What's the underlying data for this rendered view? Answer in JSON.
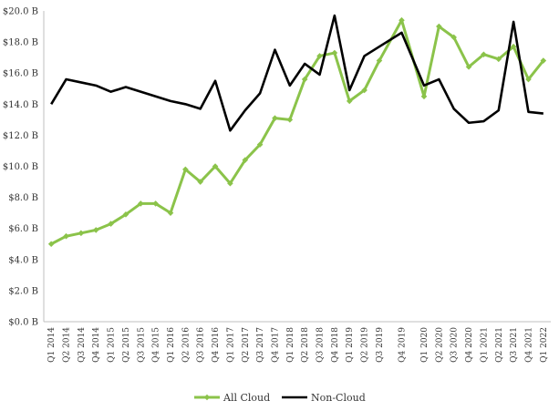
{
  "chart_data": {
    "type": "line",
    "title": "",
    "xlabel": "",
    "ylabel": "",
    "ylim": [
      0,
      20
    ],
    "y_ticks": [
      {
        "value": 0,
        "label": "$0.0 B"
      },
      {
        "value": 2,
        "label": "$2.0 B"
      },
      {
        "value": 4,
        "label": "$4.0 B"
      },
      {
        "value": 6,
        "label": "$6.0 B"
      },
      {
        "value": 8,
        "label": "$8.0 B"
      },
      {
        "value": 10,
        "label": "$10.0 B"
      },
      {
        "value": 12,
        "label": "$12.0 B"
      },
      {
        "value": 14,
        "label": "$14.0 B"
      },
      {
        "value": 16,
        "label": "$16.0 B"
      },
      {
        "value": 18,
        "label": "$18.0 B"
      },
      {
        "value": 20,
        "label": "$20.0 B"
      }
    ],
    "categories": [
      "Q1 2014",
      "Q2 2014",
      "Q3 2014",
      "Q4 2014",
      "Q1 2015",
      "Q2 2015",
      "Q3 2015",
      "Q4 2015",
      "Q1 2016",
      "Q2 2016",
      "Q3 2016",
      "Q4 2016",
      "Q1 2017",
      "Q2 2017",
      "Q3 2017",
      "Q4 2017",
      "Q1 2018",
      "Q2 2018",
      "Q3 2018",
      "Q4 2018",
      "Q1 2019",
      "Q2 2019",
      "Q3 2019",
      "Q4 2019",
      "Q1 2020",
      "Q2 2020",
      "Q3 2020",
      "Q4 2020",
      "Q1 2021",
      "Q2 2021",
      "Q3 2021",
      "Q4 2021",
      "Q1 2022"
    ],
    "series_points_per_category": [
      1,
      1,
      1,
      1,
      1,
      1,
      1,
      1,
      1,
      1,
      1,
      1,
      1,
      1,
      1,
      1,
      1,
      1,
      1,
      1,
      1,
      1,
      1,
      2,
      1,
      1,
      1,
      1,
      1,
      1,
      1,
      1,
      1
    ],
    "series": [
      {
        "name": "All Cloud",
        "color": "#8bc34a",
        "marker": "diamond",
        "values": [
          5.0,
          5.5,
          5.7,
          5.9,
          6.3,
          6.9,
          7.6,
          7.6,
          7.0,
          9.8,
          9.0,
          10.0,
          8.9,
          10.4,
          11.4,
          13.1,
          13.0,
          15.6,
          17.1,
          17.3,
          14.2,
          14.9,
          16.8,
          19.4,
          14.5,
          19.0,
          18.3,
          16.4,
          17.2,
          16.9,
          17.7,
          15.6,
          16.8
        ]
      },
      {
        "name": "Non-Cloud",
        "color": "#000000",
        "marker": "none",
        "values": [
          14.0,
          15.6,
          15.4,
          15.2,
          14.8,
          15.1,
          14.8,
          14.5,
          14.2,
          14.0,
          13.7,
          15.5,
          12.3,
          13.6,
          14.7,
          17.5,
          15.2,
          16.6,
          15.9,
          19.7,
          14.9,
          17.1,
          17.7,
          18.6,
          15.2,
          15.6,
          13.7,
          12.8,
          12.9,
          13.6,
          19.3,
          13.5,
          13.4
        ]
      }
    ],
    "grid": false,
    "legend_position": "bottom-center"
  }
}
